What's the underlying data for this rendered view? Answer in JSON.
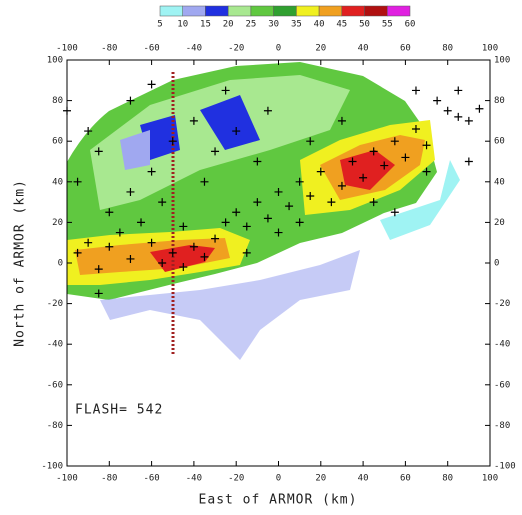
{
  "chart_data": {
    "type": "scatter",
    "x_label": "East of ARMOR (km)",
    "y_label": "North of ARMOR (km)",
    "annotation": "FLASH= 542",
    "colorbar": {
      "levels": [
        5,
        10,
        15,
        20,
        25,
        30,
        35,
        40,
        45,
        50,
        55,
        60
      ],
      "colors": [
        "#9ff3f3",
        "#a0a8f0",
        "#2030e0",
        "#a8e890",
        "#60c840",
        "#30a030",
        "#f0f020",
        "#f0a020",
        "#e02020",
        "#b01010",
        "#e020e0"
      ]
    },
    "marker_color": "#000000",
    "x": [
      -95,
      -90,
      -85,
      -80,
      -75,
      -70,
      -65,
      -60,
      -55,
      -50,
      -45,
      -40,
      -35,
      -30,
      -25,
      -20,
      -15,
      -10,
      -5,
      0,
      5,
      10,
      15,
      20,
      25,
      30,
      35,
      40,
      45,
      50,
      55,
      60,
      65,
      70,
      75,
      80,
      85,
      90,
      95,
      -90,
      -85,
      -70,
      -60,
      -50,
      -40,
      -30,
      -20,
      -10,
      -35,
      -70,
      -80,
      -95,
      -55,
      15,
      30,
      -25,
      -5,
      45,
      55,
      70,
      90,
      -100,
      -85,
      -45,
      0,
      -15,
      65,
      85,
      -60,
      10
    ],
    "values": [
      5,
      10,
      -3,
      8,
      15,
      2,
      20,
      10,
      0,
      5,
      -2,
      8,
      3,
      12,
      20,
      25,
      18,
      30,
      22,
      35,
      28,
      40,
      33,
      45,
      30,
      38,
      50,
      42,
      55,
      48,
      60,
      52,
      66,
      58,
      80,
      75,
      72,
      70,
      76,
      65,
      55,
      80,
      45,
      60,
      70,
      55,
      65,
      50,
      40,
      35,
      25,
      40,
      30,
      60,
      70,
      85,
      75,
      30,
      25,
      45,
      50,
      75,
      -15,
      18,
      15,
      5,
      85,
      85,
      88,
      20
    ],
    "xlim": [
      -100,
      100
    ],
    "ylim": [
      -100,
      100
    ],
    "xticks": [
      -100,
      -80,
      -60,
      -40,
      -20,
      0,
      20,
      40,
      60,
      80,
      100
    ],
    "yticks": [
      -100,
      -80,
      -60,
      -40,
      -20,
      0,
      20,
      40,
      60,
      80,
      100
    ]
  }
}
